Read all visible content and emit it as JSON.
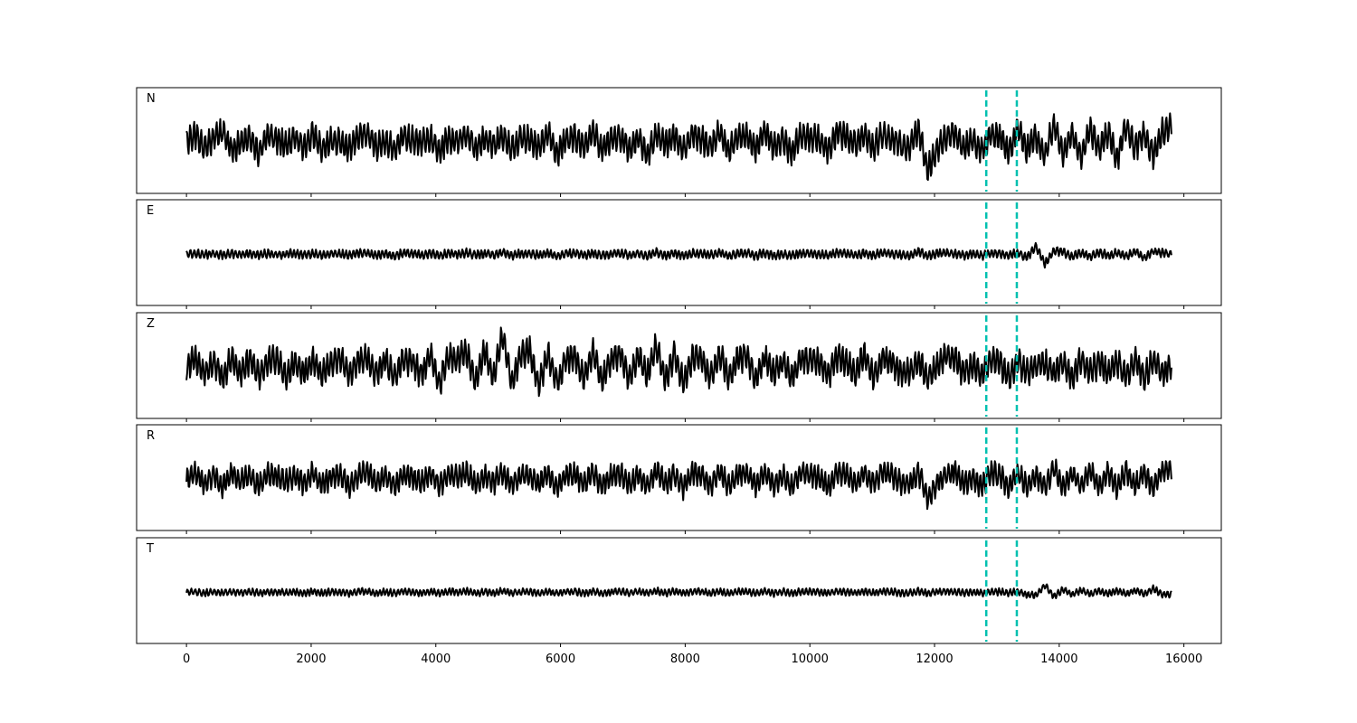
{
  "chart_data": {
    "type": "line",
    "title": "",
    "xlabel": "",
    "ylabel": "",
    "xlim": [
      -800,
      16600
    ],
    "x_ticks": [
      0,
      2000,
      4000,
      6000,
      8000,
      10000,
      12000,
      14000,
      16000
    ],
    "x_tick_labels": [
      "0",
      "2000",
      "4000",
      "6000",
      "8000",
      "10000",
      "12000",
      "14000",
      "16000"
    ],
    "shared_x": true,
    "grid": false,
    "line_color": "#000000",
    "marker_color": "#00c0b0",
    "markers": [
      {
        "x": 12830,
        "style": "dashed"
      },
      {
        "x": 13320,
        "style": "dashed"
      }
    ],
    "series": [
      {
        "name": "N",
        "x_start": 0,
        "x_end": 15800,
        "amplitude": 0.35,
        "envelope": 0.32,
        "values": [
          0.0,
          0.3,
          -0.2,
          0.1,
          0.4,
          -0.3,
          0.0,
          0.2,
          -0.4,
          0.3,
          0.1,
          -0.1,
          0.2,
          -0.2,
          0.35,
          -0.3,
          0.1,
          0.0,
          -0.25,
          0.2,
          0.3,
          -0.15,
          0.05,
          -0.3,
          0.25,
          0.1,
          -0.05,
          0.2,
          -0.35,
          0.15,
          0.0,
          0.3,
          -0.2,
          0.1,
          -0.1,
          0.25,
          -0.3,
          0.2,
          0.05,
          -0.2,
          0.3,
          -0.4,
          0.1,
          0.2,
          -0.15,
          0.35,
          -0.25,
          0.1,
          0.2,
          -0.3,
          0.15,
          -0.5,
          0.35,
          -0.1,
          0.2,
          -0.3,
          0.3,
          0.1,
          -0.2,
          0.4,
          -0.35,
          0.2,
          0.25,
          -0.3,
          0.45,
          -0.2,
          0.1,
          -0.4,
          0.3,
          0.2,
          0.1,
          -0.3,
          0.4,
          0.2,
          -0.1,
          0.3,
          -0.2,
          0.3,
          0.15,
          -0.1,
          -0.2,
          0.5,
          -1.0,
          -0.3,
          0.2,
          0.3,
          -0.2,
          0.1,
          -0.35,
          0.3,
          0.2,
          -0.4,
          0.6,
          -0.3,
          0.2,
          -0.5,
          0.7,
          -0.4,
          0.3,
          -0.5,
          0.5,
          -0.3,
          0.4,
          -0.6,
          0.6,
          -0.2,
          0.3,
          -0.5,
          0.4,
          0.5
        ]
      },
      {
        "name": "E",
        "x_start": 0,
        "x_end": 15800,
        "amplitude": 0.1,
        "envelope": 0.1,
        "values": [
          0.0,
          0.1,
          -0.05,
          0.1,
          -0.1,
          0.05,
          0.0,
          0.08,
          -0.08,
          0.1,
          -0.05,
          0.05,
          0.1,
          -0.1,
          0.15,
          -0.15,
          0.1,
          0.05,
          -0.1,
          0.15,
          0.2,
          -0.15,
          0.1,
          -0.2,
          0.2,
          0.1,
          -0.1,
          0.15,
          -0.2,
          0.15,
          0.0,
          0.2,
          -0.1,
          0.1,
          -0.1,
          0.3,
          -0.15,
          0.1,
          0.1,
          -0.1,
          0.15,
          -0.2,
          0.1,
          0.15,
          -0.1,
          0.2,
          -0.15,
          0.1,
          0.2,
          -0.1,
          0.15,
          -0.2,
          0.3,
          -0.1,
          0.2,
          -0.2,
          0.15,
          0.1,
          -0.1,
          0.25,
          -0.2,
          0.1,
          0.2,
          -0.2,
          0.2,
          -0.15,
          0.1,
          -0.2,
          0.15,
          0.1,
          0.05,
          -0.15,
          0.2,
          0.1,
          -0.1,
          0.15,
          -0.1,
          0.2,
          0.1,
          -0.1,
          -0.2,
          0.4,
          -0.2,
          0.1,
          0.2,
          0.1,
          -0.1,
          0.1,
          -0.15,
          0.15,
          0.1,
          -0.15,
          0.2,
          -0.4,
          1.0,
          -1.2,
          0.5,
          0.3,
          -0.3,
          0.2,
          -0.3,
          0.3,
          -0.2,
          0.2,
          -0.3,
          0.4,
          -0.5,
          0.4,
          0.2,
          0.0
        ]
      },
      {
        "name": "Z",
        "x_start": 0,
        "x_end": 15800,
        "amplitude": 0.35,
        "envelope": 0.33,
        "values": [
          0.0,
          0.3,
          -0.3,
          0.2,
          -0.4,
          0.35,
          -0.2,
          0.3,
          -0.3,
          0.2,
          0.3,
          -0.35,
          0.2,
          -0.2,
          0.25,
          -0.3,
          0.2,
          0.3,
          -0.3,
          0.25,
          0.35,
          -0.3,
          0.3,
          -0.4,
          0.3,
          0.2,
          -0.3,
          0.5,
          -0.6,
          0.4,
          0.3,
          0.5,
          -0.5,
          0.6,
          -0.4,
          1.2,
          -0.6,
          0.5,
          0.6,
          -0.7,
          0.5,
          -0.6,
          0.3,
          0.4,
          -0.4,
          0.6,
          -0.5,
          0.3,
          0.5,
          -0.4,
          0.4,
          -0.3,
          0.8,
          -0.5,
          0.5,
          -0.6,
          0.4,
          0.3,
          -0.4,
          0.5,
          -0.4,
          0.3,
          0.4,
          -0.5,
          0.4,
          -0.3,
          0.2,
          -0.4,
          0.3,
          0.3,
          0.2,
          -0.3,
          0.4,
          0.2,
          -0.3,
          0.5,
          -0.4,
          0.3,
          0.2,
          -0.2,
          -0.2,
          0.2,
          -0.4,
          0.0,
          0.5,
          0.3,
          -0.2,
          0.1,
          -0.3,
          0.3,
          0.2,
          -0.4,
          0.2,
          -0.2,
          0.1,
          0.15,
          -0.2,
          0.2,
          -0.35,
          0.3,
          -0.2,
          0.2,
          -0.2,
          0.2,
          -0.3,
          0.3,
          -0.4,
          0.3,
          -0.2,
          0.1
        ]
      },
      {
        "name": "R",
        "x_start": 0,
        "x_end": 15800,
        "amplitude": 0.3,
        "envelope": 0.27,
        "values": [
          0.0,
          0.3,
          -0.2,
          0.2,
          -0.3,
          0.25,
          -0.1,
          0.2,
          -0.3,
          0.25,
          0.1,
          -0.1,
          0.2,
          -0.2,
          0.3,
          -0.25,
          0.1,
          0.2,
          -0.3,
          0.2,
          0.3,
          -0.15,
          0.15,
          -0.3,
          0.2,
          0.1,
          -0.15,
          0.2,
          -0.3,
          0.2,
          0.1,
          0.3,
          -0.25,
          0.15,
          -0.15,
          0.3,
          -0.3,
          0.2,
          0.1,
          -0.2,
          0.3,
          -0.35,
          0.2,
          0.2,
          -0.2,
          0.3,
          -0.3,
          0.15,
          0.25,
          -0.25,
          0.2,
          -0.3,
          0.4,
          -0.2,
          0.25,
          -0.35,
          0.3,
          0.2,
          -0.3,
          0.35,
          -0.3,
          0.2,
          0.3,
          -0.3,
          0.3,
          -0.25,
          0.15,
          -0.3,
          0.3,
          0.2,
          0.1,
          -0.3,
          0.3,
          0.2,
          -0.2,
          0.3,
          -0.2,
          0.3,
          0.2,
          -0.1,
          -0.2,
          0.3,
          -0.8,
          -0.2,
          0.2,
          0.3,
          -0.2,
          0.1,
          -0.3,
          0.3,
          0.2,
          -0.35,
          0.3,
          -0.3,
          0.2,
          -0.3,
          0.5,
          -0.4,
          0.3,
          -0.3,
          0.4,
          -0.3,
          0.3,
          -0.4,
          0.4,
          -0.3,
          0.3,
          -0.4,
          0.4,
          0.5
        ]
      },
      {
        "name": "T",
        "x_start": 0,
        "x_end": 15800,
        "amplitude": 0.09,
        "envelope": 0.08,
        "values": [
          0.0,
          0.1,
          -0.1,
          0.05,
          -0.08,
          0.1,
          -0.05,
          0.08,
          -0.1,
          0.1,
          0.05,
          -0.08,
          0.1,
          -0.1,
          0.12,
          -0.1,
          0.08,
          0.05,
          -0.1,
          0.1,
          0.15,
          -0.1,
          0.1,
          -0.12,
          0.15,
          0.05,
          -0.08,
          0.1,
          -0.1,
          0.1,
          0.05,
          0.15,
          -0.1,
          0.1,
          -0.1,
          0.2,
          -0.1,
          0.1,
          0.08,
          -0.1,
          0.12,
          -0.15,
          0.1,
          0.12,
          -0.1,
          0.15,
          -0.12,
          0.1,
          0.15,
          -0.1,
          0.12,
          -0.1,
          0.2,
          -0.1,
          0.15,
          -0.12,
          0.15,
          0.1,
          -0.1,
          0.15,
          -0.12,
          0.1,
          0.12,
          -0.12,
          0.15,
          -0.1,
          0.1,
          -0.12,
          0.1,
          0.1,
          0.05,
          -0.1,
          0.12,
          0.08,
          -0.08,
          0.1,
          -0.08,
          0.12,
          0.08,
          -0.05,
          -0.1,
          0.2,
          -0.15,
          0.1,
          0.15,
          0.1,
          -0.08,
          0.05,
          -0.1,
          0.1,
          0.08,
          -0.1,
          0.15,
          -0.3,
          -0.4,
          1.0,
          -0.6,
          0.4,
          -0.3,
          0.3,
          -0.25,
          0.2,
          -0.2,
          0.2,
          -0.2,
          0.3,
          -0.25,
          0.5,
          -0.3,
          -0.2
        ]
      }
    ]
  }
}
